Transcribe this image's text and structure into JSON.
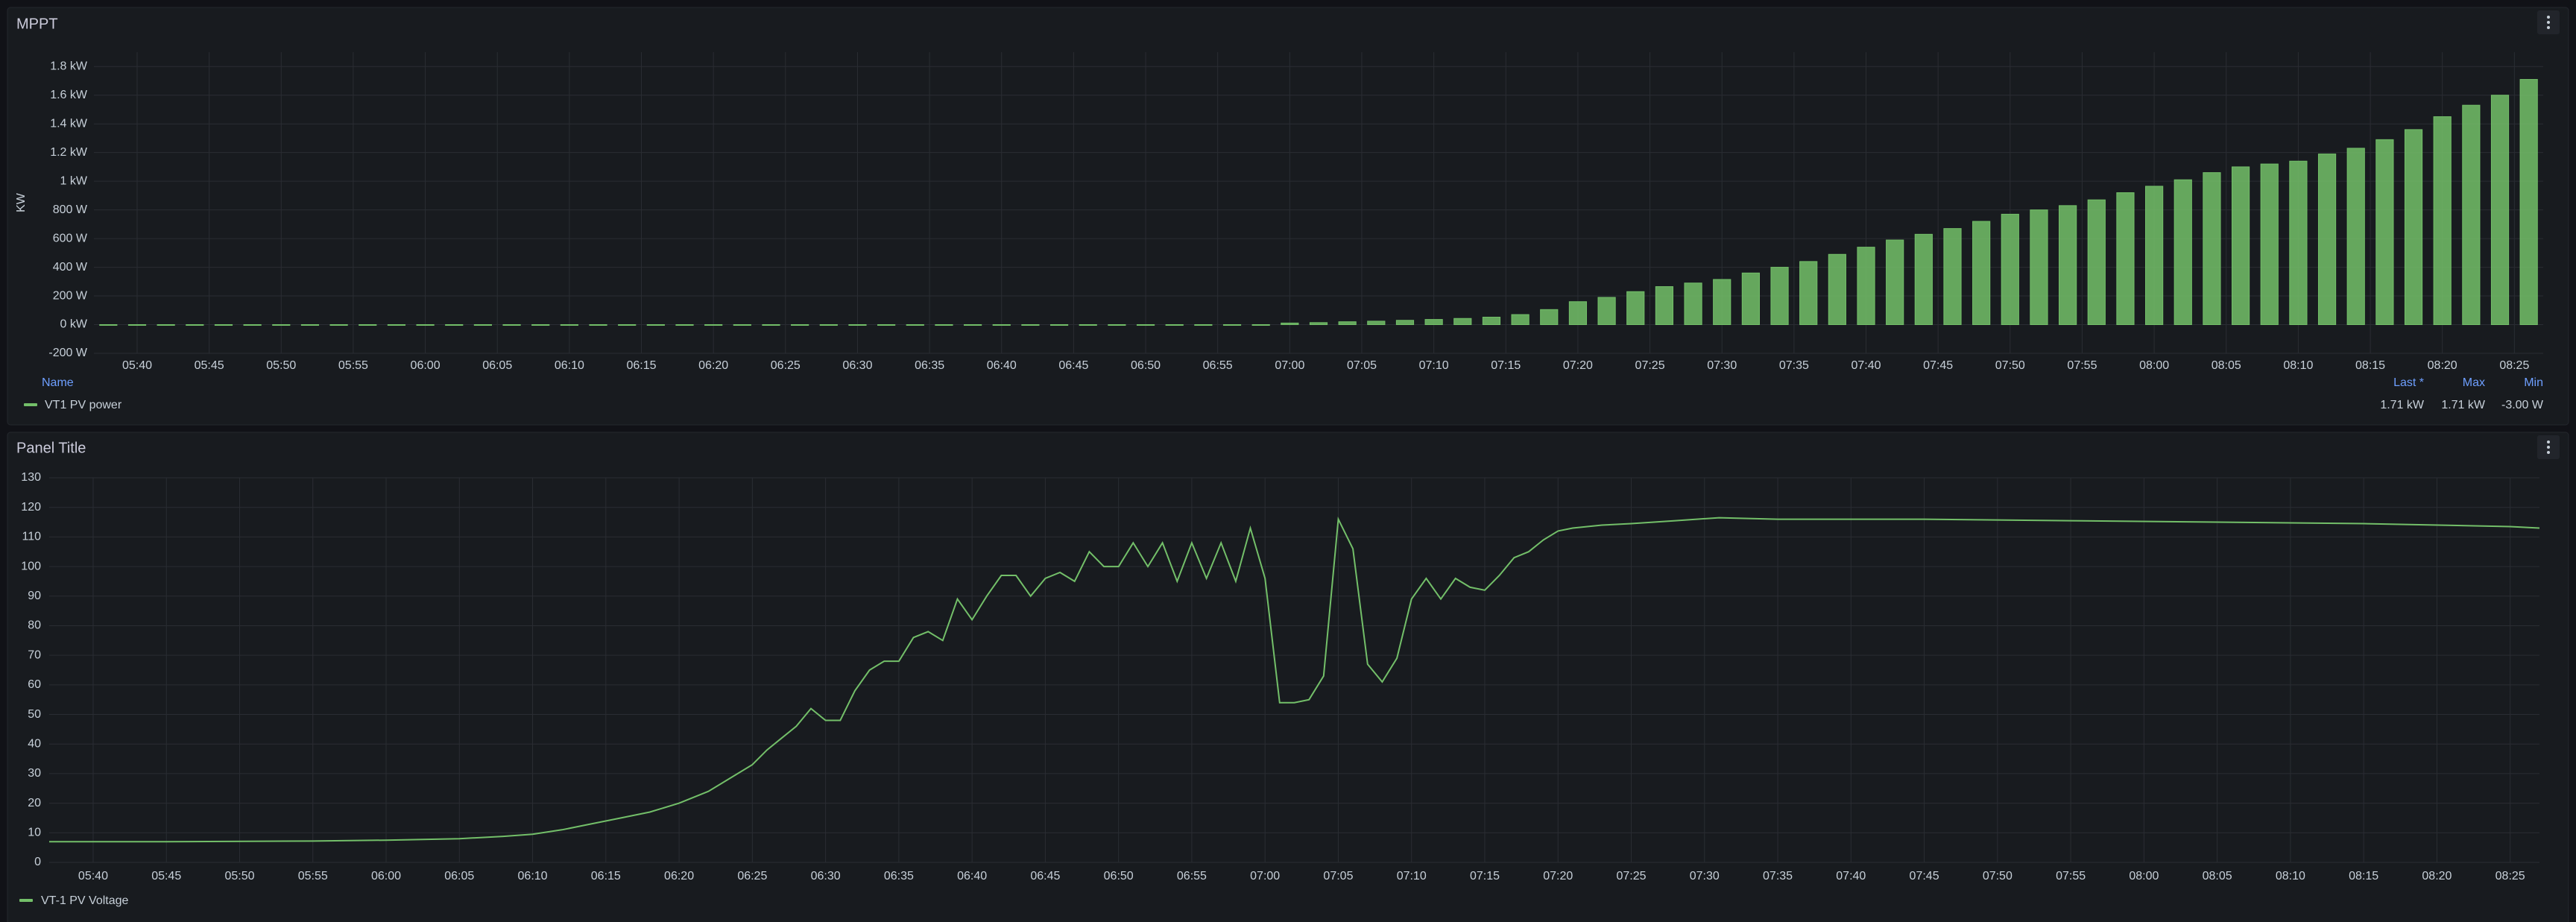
{
  "chart_data": [
    {
      "type": "bar",
      "title": "MPPT",
      "y_label": "KW",
      "x": [
        "05:38",
        "05:40",
        "05:42",
        "05:44",
        "05:46",
        "05:48",
        "05:50",
        "05:52",
        "05:54",
        "05:56",
        "05:58",
        "06:00",
        "06:02",
        "06:04",
        "06:06",
        "06:08",
        "06:10",
        "06:12",
        "06:14",
        "06:16",
        "06:18",
        "06:20",
        "06:22",
        "06:24",
        "06:26",
        "06:28",
        "06:30",
        "06:32",
        "06:34",
        "06:36",
        "06:38",
        "06:40",
        "06:42",
        "06:44",
        "06:46",
        "06:48",
        "06:50",
        "06:52",
        "06:54",
        "06:56",
        "06:58",
        "07:00",
        "07:02",
        "07:04",
        "07:06",
        "07:08",
        "07:10",
        "07:12",
        "07:14",
        "07:16",
        "07:18",
        "07:20",
        "07:22",
        "07:24",
        "07:26",
        "07:28",
        "07:30",
        "07:32",
        "07:34",
        "07:36",
        "07:38",
        "07:40",
        "07:42",
        "07:44",
        "07:46",
        "07:48",
        "07:50",
        "07:52",
        "07:54",
        "07:56",
        "07:58",
        "08:00",
        "08:02",
        "08:04",
        "08:06",
        "08:08",
        "08:10",
        "08:12",
        "08:14",
        "08:16",
        "08:18",
        "08:20",
        "08:22",
        "08:24",
        "08:26"
      ],
      "series": [
        {
          "name": "VT1 PV power",
          "color": "#73bf69",
          "values": [
            0,
            0,
            0,
            0,
            0,
            0,
            0,
            0,
            0,
            0,
            0,
            0,
            0,
            0,
            0,
            0,
            0,
            0,
            0,
            0,
            -3,
            0,
            0,
            0,
            0,
            0,
            0,
            0,
            0,
            0,
            0,
            0,
            0,
            0,
            0,
            0,
            0,
            0,
            0,
            0,
            0,
            11,
            14,
            20,
            24,
            30,
            36,
            43,
            52,
            70,
            105,
            160,
            190,
            230,
            265,
            290,
            315,
            360,
            400,
            440,
            490,
            540,
            590,
            630,
            670,
            720,
            770,
            800,
            830,
            870,
            920,
            965,
            1010,
            1060,
            1100,
            1120,
            1140,
            1190,
            1230,
            1290,
            1360,
            1450,
            1530,
            1600,
            1710
          ]
        }
      ],
      "xlim": [
        "05:37",
        "08:27"
      ],
      "xticks": [
        "05:40",
        "05:45",
        "05:50",
        "05:55",
        "06:00",
        "06:05",
        "06:10",
        "06:15",
        "06:20",
        "06:25",
        "06:30",
        "06:35",
        "06:40",
        "06:45",
        "06:50",
        "06:55",
        "07:00",
        "07:05",
        "07:10",
        "07:15",
        "07:20",
        "07:25",
        "07:30",
        "07:35",
        "07:40",
        "07:45",
        "07:50",
        "07:55",
        "08:00",
        "08:05",
        "08:10",
        "08:15",
        "08:20",
        "08:25"
      ],
      "ylim": [
        -200,
        1900
      ],
      "yticks": [
        {
          "value": -200,
          "label": "-200 W"
        },
        {
          "value": 0,
          "label": "0 kW"
        },
        {
          "value": 200,
          "label": "200 W"
        },
        {
          "value": 400,
          "label": "400 W"
        },
        {
          "value": 600,
          "label": "600 W"
        },
        {
          "value": 800,
          "label": "800 W"
        },
        {
          "value": 1000,
          "label": "1 kW"
        },
        {
          "value": 1200,
          "label": "1.2 kW"
        },
        {
          "value": 1400,
          "label": "1.4 kW"
        },
        {
          "value": 1600,
          "label": "1.6 kW"
        },
        {
          "value": 1800,
          "label": "1.8 kW"
        }
      ],
      "grid": true,
      "legend": {
        "header": [
          "Name",
          "Last *",
          "Max",
          "Min"
        ],
        "stats": [
          "1.71 kW",
          "1.71 kW",
          "-3.00 W"
        ]
      }
    },
    {
      "type": "line",
      "title": "Panel Title",
      "x": [
        "05:37",
        "05:45",
        "05:55",
        "06:00",
        "06:05",
        "06:08",
        "06:10",
        "06:12",
        "06:14",
        "06:16",
        "06:18",
        "06:20",
        "06:22",
        "06:24",
        "06:25",
        "06:26",
        "06:27",
        "06:28",
        "06:29",
        "06:30",
        "06:31",
        "06:32",
        "06:33",
        "06:34",
        "06:35",
        "06:36",
        "06:37",
        "06:38",
        "06:39",
        "06:40",
        "06:41",
        "06:42",
        "06:43",
        "06:44",
        "06:45",
        "06:46",
        "06:47",
        "06:48",
        "06:49",
        "06:50",
        "06:51",
        "06:52",
        "06:53",
        "06:54",
        "06:55",
        "06:56",
        "06:57",
        "06:58",
        "06:59",
        "07:00",
        "07:01",
        "07:02",
        "07:03",
        "07:04",
        "07:05",
        "07:06",
        "07:07",
        "07:08",
        "07:09",
        "07:10",
        "07:11",
        "07:12",
        "07:13",
        "07:14",
        "07:15",
        "07:16",
        "07:17",
        "07:18",
        "07:19",
        "07:20",
        "07:21",
        "07:23",
        "07:25",
        "07:28",
        "07:31",
        "07:35",
        "07:45",
        "07:55",
        "08:05",
        "08:15",
        "08:25",
        "08:27"
      ],
      "series": [
        {
          "name": "VT-1 PV Voltage",
          "color": "#73bf69",
          "values": [
            7,
            7,
            7.2,
            7.5,
            8,
            8.8,
            9.5,
            11,
            13,
            15,
            17,
            20,
            24,
            30,
            33,
            38,
            42,
            46,
            52,
            48,
            48,
            58,
            65,
            68,
            68,
            76,
            78,
            75,
            89,
            82,
            90,
            97,
            97,
            90,
            96,
            98,
            95,
            105,
            100,
            100,
            108,
            100,
            108,
            95,
            108,
            96,
            108,
            95,
            113,
            96,
            54,
            54,
            55,
            63,
            116,
            106,
            67,
            61,
            69,
            89,
            96,
            89,
            96,
            93,
            92,
            97,
            103,
            105,
            109,
            112,
            113,
            114,
            114.5,
            115.5,
            116.5,
            116,
            116,
            115.5,
            115,
            114.5,
            113.5,
            113
          ]
        }
      ],
      "xlim": [
        "05:37",
        "08:27"
      ],
      "xticks": [
        "05:40",
        "05:45",
        "05:50",
        "05:55",
        "06:00",
        "06:05",
        "06:10",
        "06:15",
        "06:20",
        "06:25",
        "06:30",
        "06:35",
        "06:40",
        "06:45",
        "06:50",
        "06:55",
        "07:00",
        "07:05",
        "07:10",
        "07:15",
        "07:20",
        "07:25",
        "07:30",
        "07:35",
        "07:40",
        "07:45",
        "07:50",
        "07:55",
        "08:00",
        "08:05",
        "08:10",
        "08:15",
        "08:20",
        "08:25"
      ],
      "ylim": [
        0,
        130
      ],
      "yticks": [
        0,
        10,
        20,
        30,
        40,
        50,
        60,
        70,
        80,
        90,
        100,
        110,
        120,
        130
      ],
      "grid": true
    }
  ]
}
